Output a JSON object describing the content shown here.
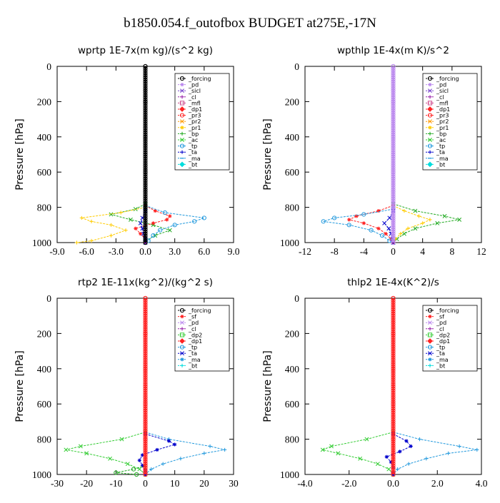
{
  "figure_title": "b1850.054.f_outofbox  BUDGET at275E,-17N",
  "chart_data": [
    {
      "type": "line",
      "title": "wprtp   1E-7x(m kg)/(s^2 kg)",
      "ylabel": "Pressure [hPa]",
      "xlim": [
        -9,
        9
      ],
      "ylim": [
        0,
        1000
      ],
      "xticks": [
        "-9.0",
        "-6.0",
        "-3.0",
        "0.0",
        "3.0",
        "6.0",
        "9.0"
      ],
      "xtick_values": [
        -9,
        -6,
        -3,
        0,
        3,
        6,
        9
      ],
      "yticks": [
        "0",
        "200",
        "400",
        "600",
        "800",
        "1000"
      ],
      "ytick_values": [
        0,
        200,
        400,
        600,
        800,
        1000
      ],
      "legend_position": "top-right",
      "legend": [
        "_forcing",
        "_pd",
        "_sicl",
        "_cl",
        "_mfl",
        "_dp1",
        "_pr3",
        "_pr2",
        "_pr1",
        "_bp",
        "_ac",
        "_tp",
        "_ta",
        "_ma",
        "_bt"
      ],
      "series": [
        {
          "color": "#22aa22",
          "y": [
            780,
            810,
            840,
            870,
            900,
            930,
            960,
            990,
            1000
          ],
          "values": [
            0.0,
            -1.0,
            -3.5,
            -1.5,
            0.8,
            2.5,
            1.0,
            0.0,
            0.0
          ]
        },
        {
          "color": "#ffcc00",
          "y": [
            800,
            830,
            860,
            880,
            900,
            930,
            960,
            990,
            1000
          ],
          "values": [
            0.0,
            -2.5,
            -6.5,
            -5.5,
            -3.5,
            -2.0,
            -3.5,
            -5.5,
            -7.0
          ]
        },
        {
          "color": "#ff2222",
          "y": [
            790,
            820,
            850,
            870,
            890,
            920,
            950,
            980,
            1000
          ],
          "values": [
            0.0,
            1.0,
            2.5,
            2.2,
            0.8,
            -1.0,
            -0.5,
            0.0,
            0.0
          ]
        },
        {
          "color": "#2299dd",
          "y": [
            790,
            830,
            860,
            880,
            900,
            930,
            960,
            990,
            1000
          ],
          "values": [
            0.0,
            2.0,
            6.0,
            5.0,
            3.0,
            1.5,
            0.8,
            0.3,
            0.0
          ]
        },
        {
          "color": "#0000cc",
          "y": [
            820,
            860,
            890,
            920,
            950,
            980,
            1000
          ],
          "values": [
            0.0,
            -0.3,
            -0.5,
            -0.3,
            -0.2,
            0.0,
            0.0
          ]
        },
        {
          "color": "#000000",
          "y": [
            0,
            200,
            400,
            600,
            800,
            1000
          ],
          "values": [
            0,
            0,
            0,
            0,
            0,
            0
          ]
        }
      ]
    },
    {
      "type": "line",
      "title": "wpthlp   1E-4x(m K)/s^2",
      "ylabel": "Pressure [hPa]",
      "xlim": [
        -12,
        12
      ],
      "ylim": [
        0,
        1000
      ],
      "xticks": [
        "-12",
        "-8",
        "-4",
        "0",
        "4",
        "8",
        "12"
      ],
      "xtick_values": [
        -12,
        -8,
        -4,
        0,
        4,
        8,
        12
      ],
      "yticks": [
        "0",
        "200",
        "400",
        "600",
        "800",
        "1000"
      ],
      "ytick_values": [
        0,
        200,
        400,
        600,
        800,
        1000
      ],
      "legend_position": "top-right",
      "legend": [
        "_forcing",
        "_pd",
        "_sicl",
        "_cl",
        "_mfl",
        "_dp1",
        "_pr3",
        "_pr2",
        "_pr1",
        "_bp",
        "_ac",
        "_tp",
        "_ta",
        "_ma",
        "_bt"
      ],
      "series": [
        {
          "color": "#22aa22",
          "y": [
            780,
            820,
            850,
            870,
            890,
            920,
            950,
            980,
            1000
          ],
          "values": [
            0.0,
            3.0,
            7.0,
            9.0,
            6.0,
            3.0,
            1.5,
            0.5,
            0.0
          ]
        },
        {
          "color": "#ffcc00",
          "y": [
            790,
            820,
            850,
            870,
            890,
            920,
            950,
            980,
            1000
          ],
          "values": [
            0.0,
            1.5,
            3.5,
            5.0,
            4.0,
            2.0,
            1.0,
            0.3,
            0.0
          ]
        },
        {
          "color": "#ff2222",
          "y": [
            790,
            820,
            850,
            870,
            890,
            920,
            950,
            980,
            1000
          ],
          "values": [
            0.0,
            -2.0,
            -5.0,
            -6.0,
            -4.0,
            -2.0,
            -1.0,
            -0.3,
            0.0
          ]
        },
        {
          "color": "#2299dd",
          "y": [
            810,
            840,
            860,
            880,
            900,
            930,
            960,
            990,
            1000
          ],
          "values": [
            0.0,
            -4.0,
            -8.0,
            -9.5,
            -6.0,
            -3.0,
            -1.5,
            -0.5,
            0.0
          ]
        },
        {
          "color": "#0000cc",
          "y": [
            820,
            860,
            890,
            920,
            950,
            980,
            1000
          ],
          "values": [
            0.0,
            -0.5,
            -1.2,
            -0.6,
            -0.3,
            -0.1,
            0.0
          ]
        },
        {
          "color": "#bb88ee",
          "y": [
            0,
            200,
            400,
            600,
            800,
            1000
          ],
          "values": [
            0,
            0,
            0,
            0,
            0,
            0
          ]
        }
      ]
    },
    {
      "type": "line",
      "title": "rtp2   1E-11x(kg^2)/(kg^2 s)",
      "ylabel": "Pressure [hPa]",
      "xlim": [
        -30,
        30
      ],
      "ylim": [
        0,
        1000
      ],
      "xticks": [
        "-30",
        "-20",
        "-10",
        "0",
        "10",
        "20",
        "30"
      ],
      "xtick_values": [
        -30,
        -20,
        -10,
        0,
        10,
        20,
        30
      ],
      "yticks": [
        "0",
        "200",
        "400",
        "600",
        "800",
        "1000"
      ],
      "ytick_values": [
        0,
        200,
        400,
        600,
        800,
        1000
      ],
      "legend_position": "top-right",
      "legend": [
        "_forcing",
        "_sf",
        "_pd",
        "_cl",
        "_dp2",
        "_dp1",
        "_tp",
        "_ta",
        "_ma",
        "_bt"
      ],
      "series": [
        {
          "color": "#33cc33",
          "y": [
            760,
            800,
            840,
            860,
            880,
            910,
            940,
            970,
            1000
          ],
          "values": [
            0.0,
            -8.0,
            -22.0,
            -27.0,
            -20.0,
            -12.0,
            -6.0,
            -2.0,
            0.0
          ]
        },
        {
          "color": "#2299dd",
          "y": [
            760,
            800,
            840,
            860,
            880,
            910,
            940,
            970,
            1000
          ],
          "values": [
            0.0,
            8.0,
            22.0,
            27.0,
            20.0,
            12.0,
            6.0,
            2.0,
            0.0
          ]
        },
        {
          "color": "#0000cc",
          "y": [
            770,
            810,
            830,
            860,
            890,
            920,
            950,
            980,
            1000
          ],
          "values": [
            0.0,
            8.0,
            10.0,
            4.0,
            -1.0,
            -2.0,
            -1.0,
            0.0,
            0.0
          ]
        },
        {
          "color": "#22aa22",
          "y": [
            950,
            970,
            990,
            1000
          ],
          "values": [
            0.0,
            -4.0,
            -10.0,
            -3.0
          ]
        },
        {
          "color": "#ff2222",
          "y": [
            0,
            200,
            400,
            600,
            800,
            1000
          ],
          "values": [
            0,
            0,
            0,
            0,
            0,
            0
          ]
        }
      ]
    },
    {
      "type": "line",
      "title": "thlp2   1E-4x(K^2)/s",
      "ylabel": "Pressure [hPa]",
      "xlim": [
        -4,
        4
      ],
      "ylim": [
        0,
        1000
      ],
      "xticks": [
        "-4.0",
        "-2.0",
        "0.0",
        "2.0",
        "4.0"
      ],
      "xtick_values": [
        -4,
        -2,
        0,
        2,
        4
      ],
      "yticks": [
        "0",
        "200",
        "400",
        "600",
        "800",
        "1000"
      ],
      "ytick_values": [
        0,
        200,
        400,
        600,
        800,
        1000
      ],
      "legend_position": "top-right",
      "legend": [
        "_forcing",
        "_sf",
        "_pd",
        "_cl",
        "_dp2",
        "_dp1",
        "_tp",
        "_ta",
        "_ma",
        "_bt"
      ],
      "series": [
        {
          "color": "#33cc33",
          "y": [
            760,
            800,
            840,
            860,
            880,
            910,
            940,
            970,
            1000
          ],
          "values": [
            0.0,
            -1.2,
            -2.8,
            -3.2,
            -2.5,
            -1.5,
            -0.7,
            -0.2,
            0.0
          ]
        },
        {
          "color": "#2299dd",
          "y": [
            760,
            800,
            840,
            860,
            880,
            910,
            940,
            970,
            1000
          ],
          "values": [
            0.0,
            1.2,
            3.0,
            3.8,
            2.5,
            1.5,
            0.7,
            0.2,
            0.0
          ]
        },
        {
          "color": "#0000cc",
          "y": [
            770,
            810,
            840,
            870,
            900,
            930,
            960,
            990,
            1000
          ],
          "values": [
            0.0,
            0.6,
            0.8,
            0.3,
            -0.3,
            -0.1,
            0.0,
            0.0,
            0.0
          ]
        },
        {
          "color": "#ff2222",
          "y": [
            0,
            200,
            400,
            600,
            800,
            1000
          ],
          "values": [
            0,
            0,
            0,
            0,
            0,
            0
          ]
        }
      ]
    }
  ]
}
